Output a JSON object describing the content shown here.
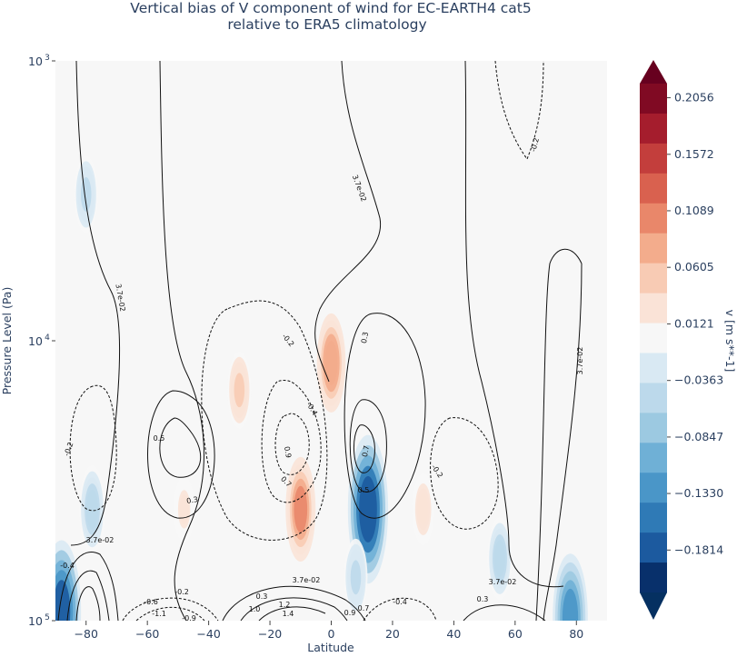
{
  "chart_data": {
    "type": "heatmap",
    "title_lines": [
      "Vertical bias of V component of wind for EC-EARTH4 cat5",
      "relative to ERA5 climatology"
    ],
    "xlabel": "Latitude",
    "ylabel": "Pressure Level (Pa)",
    "xlim": [
      -90,
      90
    ],
    "ylim": [
      1000,
      100000
    ],
    "yscale": "log",
    "x_ticks": [
      -80,
      -60,
      -40,
      -20,
      0,
      20,
      40,
      60,
      80
    ],
    "y_ticks": [
      {
        "value": 1000,
        "base": "10",
        "exp": "3"
      },
      {
        "value": 10000,
        "base": "10",
        "exp": "4"
      },
      {
        "value": 100000,
        "base": "10",
        "exp": "5"
      }
    ],
    "colorbar": {
      "label": "v [m s**-1]",
      "ticks": [
        "0.2056",
        "0.1572",
        "0.1089",
        "0.0605",
        "0.0121",
        "−0.0363",
        "−0.0847",
        "−0.1330",
        "−0.1814"
      ],
      "levels": [
        -0.2056,
        -0.1814,
        -0.1572,
        -0.133,
        -0.1089,
        -0.0847,
        -0.0605,
        -0.0363,
        -0.0121,
        0.0121,
        0.0363,
        0.0605,
        0.0847,
        0.1089,
        0.133,
        0.1572,
        0.1814,
        0.2056
      ],
      "colors": [
        "#08306b",
        "#1c5a9f",
        "#2f7ab6",
        "#4a96c8",
        "#6fb0d6",
        "#9cc9e1",
        "#bcd9eb",
        "#d9e9f3",
        "#f7f7f7",
        "#fae3d7",
        "#f8cbb4",
        "#f3ac8c",
        "#e9876a",
        "#d9614f",
        "#c33e3c",
        "#a51d2d",
        "#800a23"
      ]
    },
    "contour_labels": [
      "3.7e-02",
      "-0.2",
      "0.3",
      "0.5",
      "0.7",
      "0.9",
      "-0.4",
      "1.0",
      "1.2",
      "1.4",
      "-0.6",
      "-0.9",
      "-1.1"
    ],
    "bias_features": [
      {
        "lat": -78,
        "plev": 40000,
        "value": -0.06
      },
      {
        "lat": -48,
        "plev": 40000,
        "value": 0.02
      },
      {
        "lat": -30,
        "plev": 15000,
        "value": 0.04
      },
      {
        "lat": -10,
        "plev": 40000,
        "value": 0.09
      },
      {
        "lat": 0,
        "plev": 12000,
        "value": 0.08
      },
      {
        "lat": 12,
        "plev": 40000,
        "value": -0.17
      },
      {
        "lat": 8,
        "plev": 70000,
        "value": -0.04
      },
      {
        "lat": 30,
        "plev": 40000,
        "value": 0.03
      },
      {
        "lat": 55,
        "plev": 60000,
        "value": -0.05
      },
      {
        "lat": -80,
        "plev": 3000,
        "value": -0.04
      },
      {
        "lat": 78,
        "plev": 97000,
        "value": -0.13
      },
      {
        "lat": -88,
        "plev": 93000,
        "value": -0.16
      }
    ]
  }
}
